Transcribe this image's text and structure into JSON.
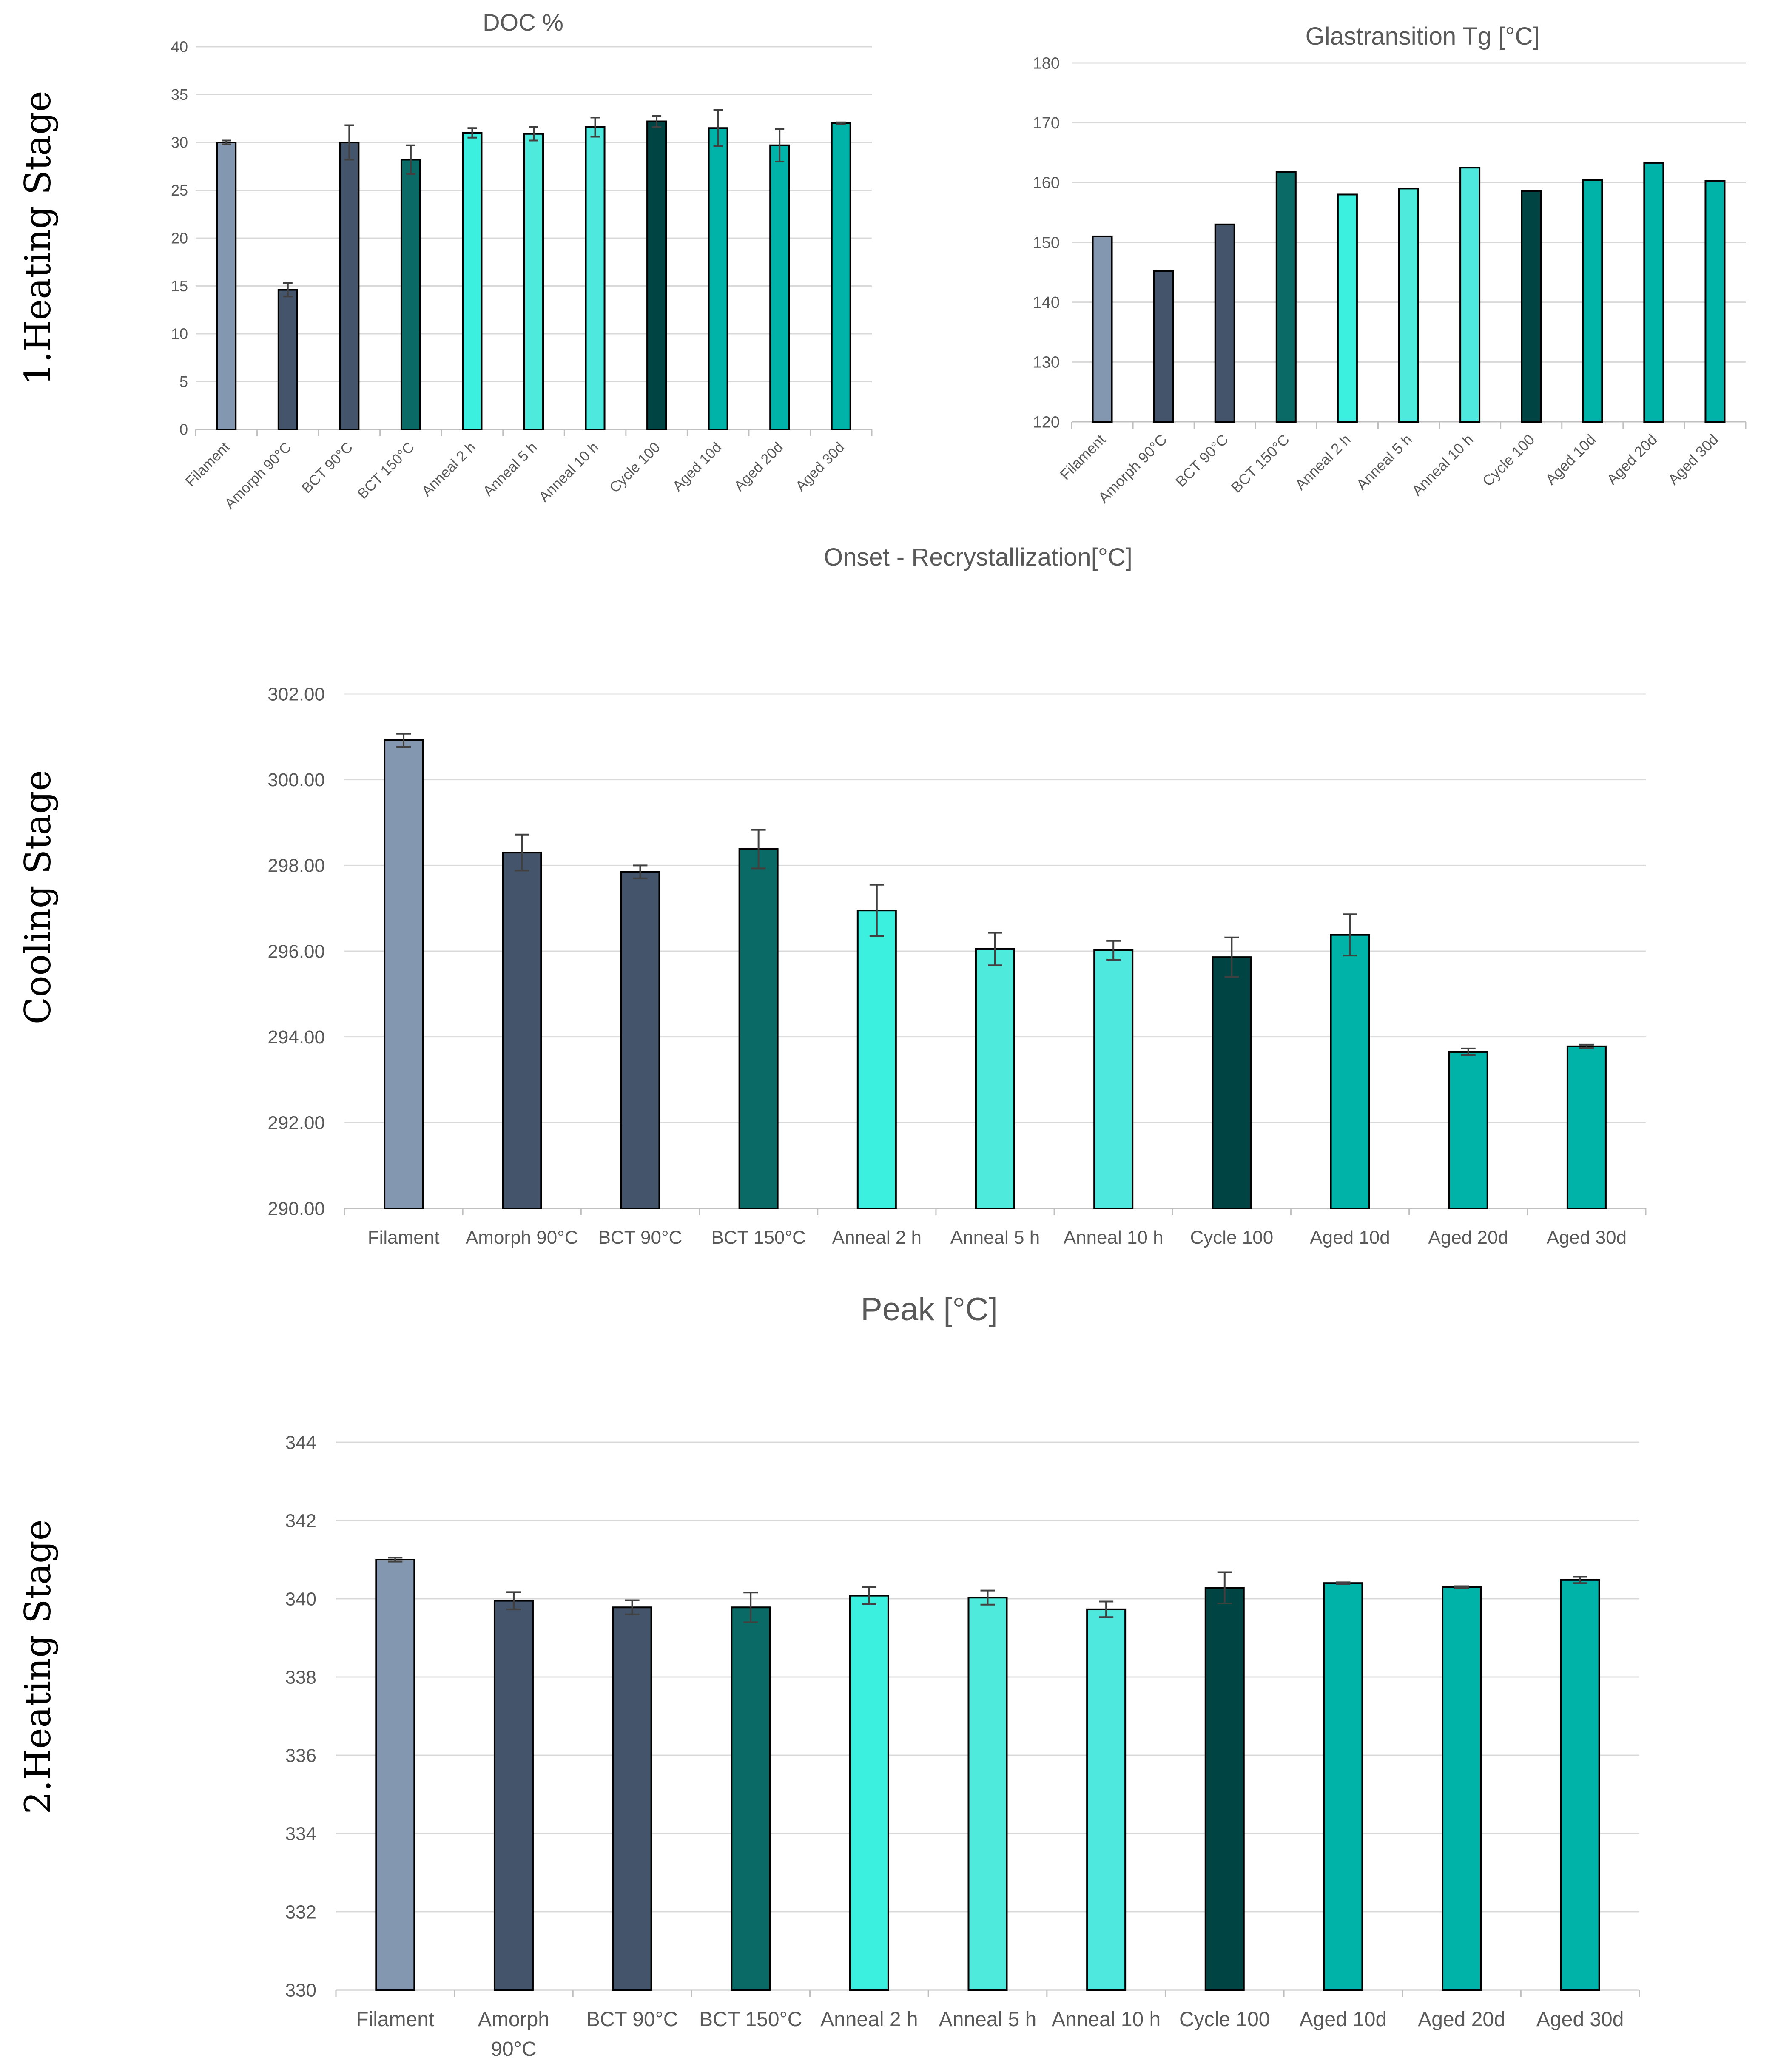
{
  "stage_labels": [
    "1.Heating Stage",
    "Cooling Stage",
    "2.Heating Stage"
  ],
  "colors": {
    "Filament": "#8497b0",
    "Amorph 90°C": "#44546a",
    "BCT 90°C": "#44546a",
    "BCT 150°C": "#0a6b66",
    "Anneal 2 h": "#3cf0e0",
    "Anneal 5 h": "#4eebdc",
    "Anneal 10 h": "#4ee8df",
    "Cycle 100": "#004444",
    "Aged 10d": "#00b3a8",
    "Aged 20d": "#00b3a8",
    "Aged 30d": "#00b3a8"
  },
  "chart_data": [
    {
      "id": "doc",
      "type": "bar",
      "title": "DOC  %",
      "xlabel": "",
      "ylabel": "",
      "categories": [
        "Filament",
        "Amorph 90°C",
        "BCT 90°C",
        "BCT 150°C",
        "Anneal 2 h",
        "Anneal 5 h",
        "Anneal 10 h",
        "Cycle 100",
        "Aged 10d",
        "Aged 20d",
        "Aged 30d"
      ],
      "values": [
        30.0,
        14.6,
        30.0,
        28.2,
        31.0,
        30.9,
        31.6,
        32.2,
        31.5,
        29.7,
        32.0
      ],
      "errors": [
        0.2,
        0.7,
        1.8,
        1.5,
        0.5,
        0.7,
        1.0,
        0.6,
        1.9,
        1.7,
        0.1
      ],
      "ylim": [
        0,
        40
      ],
      "yticks": [
        "0",
        "5",
        "10",
        "15",
        "20",
        "25",
        "30",
        "35",
        "40"
      ],
      "grid": true,
      "legend": "none"
    },
    {
      "id": "tg",
      "type": "bar",
      "title": "Glastransition Tg [°C]",
      "xlabel": "",
      "ylabel": "",
      "categories": [
        "Filament",
        "Amorph 90°C",
        "BCT 90°C",
        "BCT 150°C",
        "Anneal 2 h",
        "Anneal 5 h",
        "Anneal 10 h",
        "Cycle 100",
        "Aged 10d",
        "Aged 20d",
        "Aged 30d"
      ],
      "values": [
        151.0,
        145.2,
        153.0,
        161.8,
        158.0,
        159.0,
        162.5,
        158.6,
        160.4,
        163.3,
        160.3
      ],
      "ylim": [
        120,
        180
      ],
      "yticks": [
        "120",
        "130",
        "140",
        "150",
        "160",
        "170",
        "180"
      ],
      "grid": true,
      "legend": "none"
    },
    {
      "id": "onset",
      "type": "bar",
      "title": "Onset - Recrystallization[°C]",
      "xlabel": "",
      "ylabel": "",
      "categories": [
        "Filament",
        "Amorph 90°C",
        "BCT 90°C",
        "BCT 150°C",
        "Anneal 2 h",
        "Anneal 5 h",
        "Anneal 10 h",
        "Cycle 100",
        "Aged 10d",
        "Aged 20d",
        "Aged 30d"
      ],
      "values": [
        300.92,
        298.3,
        297.85,
        298.38,
        296.95,
        296.05,
        296.02,
        295.86,
        296.38,
        293.65,
        293.78
      ],
      "errors": [
        0.15,
        0.42,
        0.15,
        0.45,
        0.6,
        0.38,
        0.22,
        0.46,
        0.48,
        0.08,
        0.04
      ],
      "ylim": [
        290,
        302
      ],
      "yticks": [
        "290.00",
        "292.00",
        "294.00",
        "296.00",
        "298.00",
        "300.00",
        "302.00"
      ],
      "grid": true,
      "legend": "none"
    },
    {
      "id": "peak",
      "type": "bar",
      "title": "Peak [°C]",
      "xlabel": "",
      "ylabel": "",
      "categories": [
        "Filament",
        "Amorph 90°C",
        "BCT 90°C",
        "BCT 150°C",
        "Anneal 2 h",
        "Anneal 5 h",
        "Anneal 10 h",
        "Cycle 100",
        "Aged 10d",
        "Aged 20d",
        "Aged 30d"
      ],
      "values": [
        341.0,
        339.95,
        339.78,
        339.78,
        340.08,
        340.03,
        339.73,
        340.28,
        340.4,
        340.3,
        340.48
      ],
      "errors": [
        0.05,
        0.22,
        0.18,
        0.38,
        0.22,
        0.18,
        0.2,
        0.4,
        0.02,
        0.02,
        0.08
      ],
      "ylim": [
        330,
        344
      ],
      "yticks": [
        "330",
        "332",
        "334",
        "336",
        "338",
        "340",
        "342",
        "344"
      ],
      "grid": true,
      "legend": "none"
    }
  ]
}
